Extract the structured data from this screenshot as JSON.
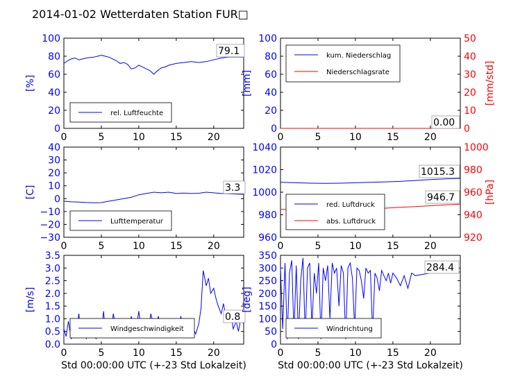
{
  "figure": {
    "title": "2014-01-02 Wetterdaten Station FUR□"
  },
  "colors": {
    "blue": "#0000ff",
    "red": "#ff0000",
    "black": "#000000"
  },
  "chart_data": [
    {
      "id": "humidity",
      "type": "line",
      "ylabel": "[%]",
      "xlabel": "",
      "xlim": [
        0,
        24
      ],
      "ylim": [
        0,
        100
      ],
      "x_ticks": [
        "0",
        "5",
        "10",
        "15",
        "20"
      ],
      "y_ticks": [
        "0",
        "20",
        "40",
        "60",
        "80",
        "100"
      ],
      "legend": "bottom-left",
      "annotation": "79.1",
      "series": [
        {
          "name": "rel. Luftfeuchte",
          "color": "#0000ff",
          "x": [
            0,
            0.5,
            1,
            1.5,
            2,
            3,
            4,
            4.5,
            5,
            5.5,
            6,
            6.5,
            7,
            7.5,
            8,
            8.5,
            9,
            9.5,
            10,
            10.5,
            11,
            11.5,
            12,
            12.5,
            13,
            13.5,
            14,
            15,
            16,
            17,
            18,
            19,
            20,
            21,
            22,
            23,
            24
          ],
          "y": [
            72,
            75,
            77,
            78,
            76,
            78,
            79,
            80,
            81,
            80,
            79,
            77,
            75,
            72,
            73,
            71,
            66,
            67,
            70,
            68,
            66,
            64,
            60,
            64,
            67,
            68,
            70,
            72,
            73,
            74,
            73,
            74,
            76,
            78,
            79,
            79,
            79.1
          ]
        }
      ]
    },
    {
      "id": "precip",
      "type": "line",
      "ylabel": "[mm]",
      "ylabel_right": "[mm/std]",
      "xlim": [
        0,
        24
      ],
      "ylim": [
        0,
        100
      ],
      "ylim_right": [
        0,
        50
      ],
      "x_ticks": [
        "0",
        "5",
        "10",
        "15",
        "20"
      ],
      "y_ticks": [
        "0",
        "20",
        "40",
        "60",
        "80",
        "100"
      ],
      "y_ticks_right": [
        "0",
        "10",
        "20",
        "30",
        "40",
        "50"
      ],
      "legend": "top-left",
      "annotation": "0.00",
      "series": [
        {
          "name": "kum. Niederschlag",
          "color": "#0000ff",
          "axis": "left",
          "x": [
            0,
            24
          ],
          "y": [
            0,
            0
          ]
        },
        {
          "name": "Niederschlagsrate",
          "color": "#ff0000",
          "axis": "right",
          "x": [
            0,
            24
          ],
          "y": [
            0,
            0
          ]
        }
      ]
    },
    {
      "id": "temperature",
      "type": "line",
      "ylabel": "[C]",
      "xlim": [
        0,
        24
      ],
      "ylim": [
        -30,
        40
      ],
      "x_ticks": [
        "0",
        "5",
        "10",
        "15",
        "20"
      ],
      "y_ticks": [
        "−30",
        "−20",
        "−10",
        "0",
        "10",
        "20",
        "30",
        "40"
      ],
      "legend": "bottom-left",
      "annotation": "3.3",
      "series": [
        {
          "name": "Lufttemperatur",
          "color": "#0000ff",
          "x": [
            0,
            1,
            2,
            3,
            4,
            5,
            6,
            7,
            8,
            9,
            10,
            11,
            12,
            13,
            14,
            15,
            16,
            17,
            18,
            19,
            20,
            21,
            22,
            23,
            24
          ],
          "y": [
            -2,
            -2.5,
            -2.7,
            -3,
            -3.2,
            -3.1,
            -2,
            -1,
            0,
            1,
            3,
            4,
            5,
            4.5,
            5,
            4,
            4.3,
            4,
            4.2,
            5,
            4.5,
            4,
            3.8,
            3.5,
            3.3
          ]
        }
      ]
    },
    {
      "id": "pressure",
      "type": "line",
      "ylabel": "",
      "ylabel_right": "[hPa]",
      "xlim": [
        0,
        24
      ],
      "ylim": [
        950,
        1050
      ],
      "ylim_right": [
        910,
        1010
      ],
      "x_ticks": [
        "0",
        "5",
        "10",
        "15",
        "20"
      ],
      "y_ticks": [
        "960",
        "980",
        "1000",
        "1020",
        "1040"
      ],
      "y_ticks_right": [
        "920",
        "940",
        "960",
        "980",
        "1000"
      ],
      "legend": "bottom-left",
      "annotations": [
        "1015.3",
        "946.7"
      ],
      "series": [
        {
          "name": "red. Luftdruck",
          "color": "#0000ff",
          "axis": "left",
          "x": [
            0,
            2,
            4,
            6,
            8,
            10,
            12,
            14,
            16,
            18,
            20,
            22,
            24
          ],
          "y": [
            1011,
            1010.5,
            1010,
            1009.8,
            1010,
            1010.5,
            1011,
            1011.5,
            1012,
            1013,
            1014,
            1014.8,
            1015.3
          ]
        },
        {
          "name": "abs. Luftdruck",
          "color": "#ff0000",
          "axis": "right",
          "x": [
            0,
            2,
            4,
            6,
            8,
            10,
            12,
            14,
            16,
            18,
            20,
            22,
            24
          ],
          "y": [
            941,
            940.8,
            940.2,
            940,
            940.3,
            940.8,
            941.5,
            942.3,
            943.2,
            944,
            945,
            946,
            946.7
          ]
        }
      ]
    },
    {
      "id": "windspeed",
      "type": "line",
      "ylabel": "[m/s]",
      "xlabel": "Std 00:00:00 UTC (+-23 Std Lokalzeit)",
      "xlim": [
        0,
        24
      ],
      "ylim": [
        0,
        3.5
      ],
      "x_ticks": [
        "0",
        "5",
        "10",
        "15",
        "20"
      ],
      "y_ticks": [
        "0.0",
        "0.5",
        "1.0",
        "1.5",
        "2.0",
        "2.5",
        "3.0",
        "3.5"
      ],
      "legend": "bottom-left",
      "annotation": "0.8",
      "series": [
        {
          "name": "Windgeschwindigkeit",
          "color": "#0000ff",
          "x": [
            0,
            0.3,
            0.6,
            1,
            1.3,
            1.6,
            2,
            2.3,
            2.6,
            3,
            3.3,
            3.6,
            4,
            4.3,
            4.6,
            5,
            5.3,
            5.6,
            6,
            6.3,
            6.6,
            7,
            7.3,
            7.6,
            8,
            8.3,
            8.6,
            9,
            9.3,
            9.6,
            10,
            10.3,
            10.6,
            11,
            11.3,
            11.6,
            12,
            12.3,
            12.6,
            13,
            13.3,
            13.6,
            14,
            14.3,
            14.6,
            15,
            15.3,
            15.6,
            16,
            16.3,
            16.6,
            17,
            17.3,
            17.6,
            18,
            18.3,
            18.6,
            19,
            19.3,
            19.6,
            20,
            20.3,
            20.6,
            21,
            21.3,
            21.6,
            22,
            22.3,
            22.6,
            23,
            23.3,
            23.6,
            24
          ],
          "y": [
            0.6,
            0.3,
            0.9,
            0.2,
            0.8,
            0.4,
            1.2,
            0.3,
            0.7,
            0.2,
            1.0,
            0.4,
            0.6,
            0.2,
            0.9,
            0.5,
            1.3,
            0.3,
            0.8,
            0.5,
            1.2,
            0.6,
            0.4,
            1.0,
            0.5,
            0.8,
            0.4,
            1.1,
            0.6,
            0.5,
            1.3,
            0.6,
            0.4,
            0.9,
            0.5,
            1.2,
            0.7,
            0.5,
            1.1,
            0.6,
            0.4,
            1.0,
            0.6,
            0.5,
            0.8,
            0.6,
            0.5,
            1.1,
            0.6,
            0.5,
            0.7,
            0.5,
            0.6,
            0.4,
            0.8,
            1.4,
            2.9,
            2.3,
            2.6,
            2.0,
            2.2,
            1.8,
            1.5,
            1.2,
            1.6,
            1.1,
            0.9,
            1.2,
            0.6,
            0.9,
            0.5,
            1.0,
            0.8
          ]
        }
      ]
    },
    {
      "id": "winddir",
      "type": "line",
      "ylabel": "[deg]",
      "xlabel": "Std 00:00:00 UTC (+-23 Std Lokalzeit)",
      "xlim": [
        0,
        24
      ],
      "ylim": [
        0,
        350
      ],
      "x_ticks": [
        "0",
        "5",
        "10",
        "15",
        "20"
      ],
      "y_ticks": [
        "0",
        "50",
        "100",
        "150",
        "200",
        "250",
        "300",
        "350"
      ],
      "legend": "bottom-left",
      "annotation": "284.4",
      "series": [
        {
          "name": "Windrichtung",
          "color": "#0000ff",
          "x": [
            0,
            0.3,
            0.6,
            0.9,
            1.2,
            1.5,
            1.8,
            2.1,
            2.4,
            2.7,
            3,
            3.3,
            3.6,
            3.9,
            4.2,
            4.5,
            4.8,
            5.1,
            5.4,
            5.7,
            6,
            6.3,
            6.6,
            6.9,
            7.2,
            7.5,
            7.8,
            8.1,
            8.4,
            8.7,
            9,
            9.3,
            9.6,
            9.9,
            10.2,
            10.5,
            10.8,
            11.1,
            11.4,
            11.7,
            12,
            12.3,
            12.6,
            12.9,
            13.2,
            13.5,
            13.8,
            14.1,
            14.4,
            14.7,
            15,
            15.5,
            16,
            16.5,
            17,
            17.5,
            18,
            19,
            20,
            21,
            22,
            23,
            24
          ],
          "y": [
            300,
            60,
            320,
            20,
            280,
            330,
            40,
            310,
            20,
            250,
            340,
            30,
            300,
            320,
            60,
            280,
            200,
            320,
            20,
            300,
            250,
            310,
            100,
            320,
            280,
            300,
            150,
            310,
            280,
            20,
            300,
            320,
            260,
            60,
            300,
            290,
            250,
            180,
            300,
            280,
            290,
            40,
            280,
            260,
            210,
            290,
            270,
            250,
            280,
            240,
            280,
            260,
            230,
            270,
            220,
            280,
            270,
            275,
            280,
            280,
            285,
            282,
            284.4
          ]
        }
      ]
    }
  ]
}
